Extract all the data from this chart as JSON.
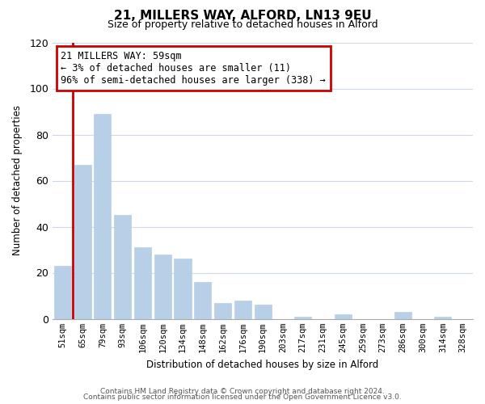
{
  "title": "21, MILLERS WAY, ALFORD, LN13 9EU",
  "subtitle": "Size of property relative to detached houses in Alford",
  "xlabel": "Distribution of detached houses by size in Alford",
  "ylabel": "Number of detached properties",
  "categories": [
    "51sqm",
    "65sqm",
    "79sqm",
    "93sqm",
    "106sqm",
    "120sqm",
    "134sqm",
    "148sqm",
    "162sqm",
    "176sqm",
    "190sqm",
    "203sqm",
    "217sqm",
    "231sqm",
    "245sqm",
    "259sqm",
    "273sqm",
    "286sqm",
    "300sqm",
    "314sqm",
    "328sqm"
  ],
  "values": [
    23,
    67,
    89,
    45,
    31,
    28,
    26,
    16,
    7,
    8,
    6,
    0,
    1,
    0,
    2,
    0,
    0,
    3,
    0,
    1,
    0
  ],
  "bar_color": "#b8cfe8",
  "annotation_line1": "21 MILLERS WAY: 59sqm",
  "annotation_line2": "← 3% of detached houses are smaller (11)",
  "annotation_line3": "96% of semi-detached houses are larger (338) →",
  "annotation_box_edgecolor": "#cc0000",
  "red_line_color": "#cc0000",
  "ylim": [
    0,
    120
  ],
  "yticks": [
    0,
    20,
    40,
    60,
    80,
    100,
    120
  ],
  "footer_line1": "Contains HM Land Registry data © Crown copyright and database right 2024.",
  "footer_line2": "Contains public sector information licensed under the Open Government Licence v3.0.",
  "background_color": "#ffffff",
  "grid_color": "#ccd9e8"
}
